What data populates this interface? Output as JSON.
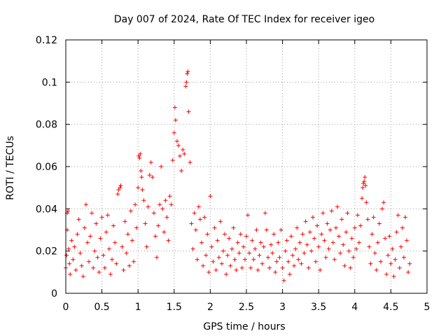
{
  "chart_data": {
    "type": "scatter",
    "title": "Day 007 of 2024, Rate Of TEC Index for receiver igeo",
    "xlabel": "GPS time / hours",
    "ylabel": "ROTI / TECUs",
    "xlim": [
      0,
      5
    ],
    "ylim": [
      0,
      0.12
    ],
    "xticks": [
      0,
      0.5,
      1,
      1.5,
      2,
      2.5,
      3,
      3.5,
      4,
      4.5,
      5
    ],
    "xtick_labels": [
      "0",
      "0.5",
      "1",
      "1.5",
      "2",
      "2.5",
      "3",
      "3.5",
      "4",
      "4.5",
      "5"
    ],
    "yticks": [
      0,
      0.02,
      0.04,
      0.06,
      0.08,
      0.1,
      0.12
    ],
    "ytick_labels": [
      "0",
      "0.02",
      "0.04",
      "0.06",
      "0.08",
      "0.1",
      "0.12"
    ],
    "grid": true,
    "marker": "+",
    "color": "#ff0000",
    "series": [
      {
        "name": "ROTI",
        "points": [
          [
            0.0,
            0.012
          ],
          [
            0.01,
            0.018
          ],
          [
            0.02,
            0.03
          ],
          [
            0.02,
            0.038
          ],
          [
            0.03,
            0.039
          ],
          [
            0.04,
            0.021
          ],
          [
            0.05,
            0.014
          ],
          [
            0.06,
            0.009
          ],
          [
            0.08,
            0.025
          ],
          [
            0.1,
            0.016
          ],
          [
            0.12,
            0.022
          ],
          [
            0.14,
            0.011
          ],
          [
            0.16,
            0.028
          ],
          [
            0.18,
            0.035
          ],
          [
            0.2,
            0.019
          ],
          [
            0.22,
            0.013
          ],
          [
            0.24,
            0.008
          ],
          [
            0.26,
            0.031
          ],
          [
            0.28,
            0.042
          ],
          [
            0.3,
            0.024
          ],
          [
            0.32,
            0.015
          ],
          [
            0.34,
            0.027
          ],
          [
            0.36,
            0.038
          ],
          [
            0.38,
            0.012
          ],
          [
            0.4,
            0.02
          ],
          [
            0.42,
            0.033
          ],
          [
            0.44,
            0.017
          ],
          [
            0.46,
            0.01
          ],
          [
            0.48,
            0.026
          ],
          [
            0.5,
            0.036
          ],
          [
            0.52,
            0.018
          ],
          [
            0.54,
            0.012
          ],
          [
            0.56,
            0.029
          ],
          [
            0.58,
            0.037
          ],
          [
            0.6,
            0.021
          ],
          [
            0.62,
            0.009
          ],
          [
            0.64,
            0.016
          ],
          [
            0.66,
            0.032
          ],
          [
            0.68,
            0.024
          ],
          [
            0.7,
            0.014
          ],
          [
            0.72,
            0.047
          ],
          [
            0.73,
            0.049
          ],
          [
            0.75,
            0.05
          ],
          [
            0.76,
            0.051
          ],
          [
            0.78,
            0.022
          ],
          [
            0.8,
            0.011
          ],
          [
            0.82,
            0.034
          ],
          [
            0.84,
            0.019
          ],
          [
            0.86,
            0.028
          ],
          [
            0.88,
            0.013
          ],
          [
            0.9,
            0.039
          ],
          [
            0.92,
            0.025
          ],
          [
            0.94,
            0.015
          ],
          [
            0.96,
            0.042
          ],
          [
            0.98,
            0.031
          ],
          [
            1.0,
            0.05
          ],
          [
            1.01,
            0.065
          ],
          [
            1.02,
            0.064
          ],
          [
            1.03,
            0.066
          ],
          [
            1.04,
            0.058
          ],
          [
            1.05,
            0.055
          ],
          [
            1.06,
            0.049
          ],
          [
            1.08,
            0.044
          ],
          [
            1.1,
            0.033
          ],
          [
            1.12,
            0.022
          ],
          [
            1.14,
            0.041
          ],
          [
            1.16,
            0.056
          ],
          [
            1.18,
            0.062
          ],
          [
            1.2,
            0.055
          ],
          [
            1.22,
            0.038
          ],
          [
            1.24,
            0.027
          ],
          [
            1.26,
            0.017
          ],
          [
            1.28,
            0.032
          ],
          [
            1.3,
            0.042
          ],
          [
            1.32,
            0.06
          ],
          [
            1.34,
            0.04
          ],
          [
            1.36,
            0.029
          ],
          [
            1.38,
            0.044
          ],
          [
            1.4,
            0.036
          ],
          [
            1.42,
            0.025
          ],
          [
            1.44,
            0.046
          ],
          [
            1.46,
            0.042
          ],
          [
            1.48,
            0.063
          ],
          [
            1.5,
            0.076
          ],
          [
            1.51,
            0.088
          ],
          [
            1.52,
            0.082
          ],
          [
            1.54,
            0.072
          ],
          [
            1.56,
            0.07
          ],
          [
            1.58,
            0.065
          ],
          [
            1.6,
            0.058
          ],
          [
            1.62,
            0.068
          ],
          [
            1.64,
            0.066
          ],
          [
            1.66,
            0.098
          ],
          [
            1.67,
            0.1
          ],
          [
            1.68,
            0.104
          ],
          [
            1.69,
            0.105
          ],
          [
            1.7,
            0.086
          ],
          [
            1.72,
            0.062
          ],
          [
            1.74,
            0.033
          ],
          [
            1.76,
            0.021
          ],
          [
            1.78,
            0.038
          ],
          [
            1.8,
            0.03
          ],
          [
            1.82,
            0.016
          ],
          [
            1.84,
            0.041
          ],
          [
            1.86,
            0.035
          ],
          [
            1.88,
            0.024
          ],
          [
            1.9,
            0.013
          ],
          [
            1.92,
            0.036
          ],
          [
            1.94,
            0.018
          ],
          [
            1.96,
            0.028
          ],
          [
            1.98,
            0.01
          ],
          [
            2.0,
            0.046
          ],
          [
            2.02,
            0.022
          ],
          [
            2.04,
            0.015
          ],
          [
            2.06,
            0.031
          ],
          [
            2.08,
            0.011
          ],
          [
            2.1,
            0.025
          ],
          [
            2.12,
            0.017
          ],
          [
            2.14,
            0.034
          ],
          [
            2.16,
            0.014
          ],
          [
            2.18,
            0.02
          ],
          [
            2.2,
            0.028
          ],
          [
            2.22,
            0.009
          ],
          [
            2.24,
            0.018
          ],
          [
            2.26,
            0.026
          ],
          [
            2.28,
            0.013
          ],
          [
            2.3,
            0.021
          ],
          [
            2.32,
            0.031
          ],
          [
            2.34,
            0.016
          ],
          [
            2.36,
            0.011
          ],
          [
            2.38,
            0.024
          ],
          [
            2.4,
            0.019
          ],
          [
            2.42,
            0.028
          ],
          [
            2.44,
            0.012
          ],
          [
            2.46,
            0.022
          ],
          [
            2.48,
            0.016
          ],
          [
            2.5,
            0.027
          ],
          [
            2.52,
            0.037
          ],
          [
            2.54,
            0.019
          ],
          [
            2.56,
            0.012
          ],
          [
            2.58,
            0.025
          ],
          [
            2.6,
            0.016
          ],
          [
            2.62,
            0.021
          ],
          [
            2.64,
            0.03
          ],
          [
            2.66,
            0.011
          ],
          [
            2.68,
            0.018
          ],
          [
            2.7,
            0.024
          ],
          [
            2.72,
            0.014
          ],
          [
            2.74,
            0.022
          ],
          [
            2.76,
            0.038
          ],
          [
            2.78,
            0.03
          ],
          [
            2.8,
            0.017
          ],
          [
            2.82,
            0.012
          ],
          [
            2.84,
            0.023
          ],
          [
            2.86,
            0.019
          ],
          [
            2.88,
            0.028
          ],
          [
            2.9,
            0.01
          ],
          [
            2.92,
            0.015
          ],
          [
            2.94,
            0.024
          ],
          [
            2.96,
            0.017
          ],
          [
            2.98,
            0.03
          ],
          [
            3.0,
            0.012
          ],
          [
            3.02,
            0.006
          ],
          [
            3.04,
            0.02
          ],
          [
            3.06,
            0.025
          ],
          [
            3.08,
            0.015
          ],
          [
            3.1,
            0.009
          ],
          [
            3.12,
            0.027
          ],
          [
            3.14,
            0.018
          ],
          [
            3.16,
            0.013
          ],
          [
            3.18,
            0.021
          ],
          [
            3.2,
            0.031
          ],
          [
            3.22,
            0.016
          ],
          [
            3.24,
            0.024
          ],
          [
            3.26,
            0.014
          ],
          [
            3.28,
            0.028
          ],
          [
            3.3,
            0.019
          ],
          [
            3.32,
            0.034
          ],
          [
            3.34,
            0.023
          ],
          [
            3.36,
            0.012
          ],
          [
            3.38,
            0.029
          ],
          [
            3.4,
            0.02
          ],
          [
            3.42,
            0.036
          ],
          [
            3.44,
            0.026
          ],
          [
            3.46,
            0.015
          ],
          [
            3.48,
            0.032
          ],
          [
            3.5,
            0.022
          ],
          [
            3.52,
            0.011
          ],
          [
            3.54,
            0.028
          ],
          [
            3.56,
            0.038
          ],
          [
            3.58,
            0.025
          ],
          [
            3.6,
            0.017
          ],
          [
            3.62,
            0.033
          ],
          [
            3.64,
            0.021
          ],
          [
            3.66,
            0.03
          ],
          [
            3.68,
            0.039
          ],
          [
            3.7,
            0.024
          ],
          [
            3.72,
            0.016
          ],
          [
            3.74,
            0.031
          ],
          [
            3.76,
            0.041
          ],
          [
            3.78,
            0.027
          ],
          [
            3.8,
            0.019
          ],
          [
            3.82,
            0.035
          ],
          [
            3.84,
            0.023
          ],
          [
            3.86,
            0.013
          ],
          [
            3.88,
            0.029
          ],
          [
            3.9,
            0.038
          ],
          [
            3.92,
            0.02
          ],
          [
            3.94,
            0.012
          ],
          [
            3.96,
            0.026
          ],
          [
            3.98,
            0.017
          ],
          [
            4.0,
            0.031
          ],
          [
            4.02,
            0.021
          ],
          [
            4.04,
            0.037
          ],
          [
            4.06,
            0.024
          ],
          [
            4.08,
            0.032
          ],
          [
            4.1,
            0.045
          ],
          [
            4.11,
            0.05
          ],
          [
            4.12,
            0.052
          ],
          [
            4.13,
            0.053
          ],
          [
            4.14,
            0.055
          ],
          [
            4.15,
            0.051
          ],
          [
            4.16,
            0.043
          ],
          [
            4.18,
            0.035
          ],
          [
            4.2,
            0.022
          ],
          [
            4.22,
            0.014
          ],
          [
            4.24,
            0.028
          ],
          [
            4.26,
            0.036
          ],
          [
            4.28,
            0.019
          ],
          [
            4.3,
            0.011
          ],
          [
            4.32,
            0.024
          ],
          [
            4.34,
            0.033
          ],
          [
            4.36,
            0.015
          ],
          [
            4.38,
            0.04
          ],
          [
            4.4,
            0.043
          ],
          [
            4.42,
            0.026
          ],
          [
            4.44,
            0.009
          ],
          [
            4.46,
            0.018
          ],
          [
            4.48,
            0.027
          ],
          [
            4.5,
            0.014
          ],
          [
            4.52,
            0.021
          ],
          [
            4.54,
            0.008
          ],
          [
            4.56,
            0.016
          ],
          [
            4.58,
            0.029
          ],
          [
            4.6,
            0.037
          ],
          [
            4.62,
            0.012
          ],
          [
            4.64,
            0.022
          ],
          [
            4.66,
            0.031
          ],
          [
            4.68,
            0.017
          ],
          [
            4.7,
            0.036
          ],
          [
            4.72,
            0.025
          ],
          [
            4.74,
            0.01
          ],
          [
            4.76,
            0.014
          ]
        ]
      }
    ]
  }
}
